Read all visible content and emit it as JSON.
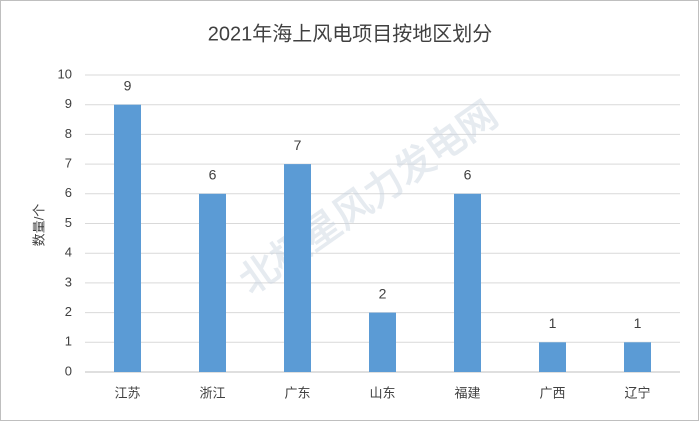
{
  "chart_data": {
    "type": "bar",
    "title": "2021年海上风电项目按地区划分",
    "y_label": "数量/个",
    "categories": [
      "江苏",
      "浙江",
      "广东",
      "山东",
      "福建",
      "广西",
      "辽宁"
    ],
    "values": [
      9,
      6,
      7,
      2,
      6,
      1,
      1
    ],
    "color": "#5b9bd5",
    "ylim": [
      0,
      10
    ],
    "yticks": [
      0,
      1,
      2,
      3,
      4,
      5,
      6,
      7,
      8,
      9,
      10
    ],
    "grid": true,
    "watermark": "北极星风力发电网"
  }
}
